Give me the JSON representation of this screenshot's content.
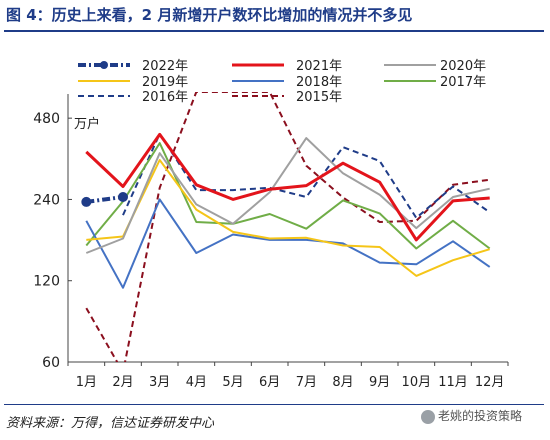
{
  "figure_title": "图 4：历史上来看，2 月新增开户数环比增加的情况并不多见",
  "source": "资料来源：万得，信达证券研发中心",
  "watermark": "老姚的投资策略",
  "chart_data": {
    "type": "line",
    "y_unit_label": "万户",
    "y_scale": "log",
    "ylim": [
      60,
      600
    ],
    "y_ticks": [
      60,
      120,
      240,
      480
    ],
    "categories": [
      "1月",
      "2月",
      "3月",
      "4月",
      "5月",
      "6月",
      "7月",
      "8月",
      "9月",
      "10月",
      "11月",
      "12月"
    ],
    "grid": false,
    "legend_position": "top",
    "series": [
      {
        "name": "2022年",
        "color": "#1f3c88",
        "style": "dash-dot-bold",
        "values": [
          235,
          245,
          null,
          null,
          null,
          null,
          null,
          null,
          null,
          null,
          null,
          null
        ]
      },
      {
        "name": "2021年",
        "color": "#e3141b",
        "style": "solid-bold",
        "values": [
          360,
          268,
          418,
          272,
          240,
          262,
          270,
          327,
          278,
          170,
          237,
          243
        ]
      },
      {
        "name": "2020年",
        "color": "#a0a0a0",
        "style": "solid",
        "values": [
          152,
          172,
          356,
          230,
          195,
          255,
          405,
          300,
          250,
          188,
          245,
          263
        ]
      },
      {
        "name": "2019年",
        "color": "#f5c518",
        "style": "solid",
        "values": [
          170,
          175,
          336,
          220,
          182,
          172,
          173,
          162,
          160,
          125,
          143,
          157
        ]
      },
      {
        "name": "2018年",
        "color": "#4472c4",
        "style": "solid",
        "values": [
          200,
          113,
          240,
          152,
          178,
          170,
          170,
          165,
          140,
          138,
          168,
          135
        ]
      },
      {
        "name": "2017年",
        "color": "#70ad47",
        "style": "solid",
        "values": [
          162,
          236,
          388,
          198,
          195,
          212,
          187,
          238,
          213,
          158,
          200,
          158
        ]
      },
      {
        "name": "2016年",
        "color": "#1f3c88",
        "style": "dashed",
        "values": [
          null,
          210,
          420,
          260,
          260,
          265,
          245,
          375,
          333,
          205,
          268,
          215
        ]
      },
      {
        "name": "2015年",
        "color": "#8b0f1e",
        "style": "dashed",
        "values": [
          95,
          55,
          265,
          600,
          600,
          600,
          320,
          244,
          198,
          200,
          272,
          284
        ]
      }
    ]
  }
}
